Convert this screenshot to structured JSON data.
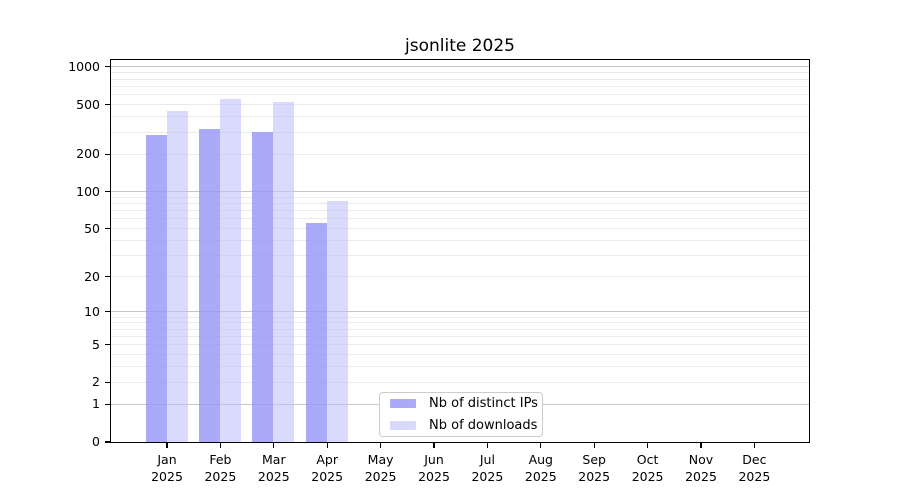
{
  "chart_data": {
    "type": "bar",
    "title": "jsonlite 2025",
    "x_categories": [
      "Jan",
      "Feb",
      "Mar",
      "Apr",
      "May",
      "Jun",
      "Jul",
      "Aug",
      "Sep",
      "Oct",
      "Nov",
      "Dec"
    ],
    "x_year_label": "2025",
    "series": [
      {
        "name": "Nb of distinct IPs",
        "color": "rgba(149,149,247,0.80)",
        "solid_color": "#aaaaf8",
        "values": [
          290,
          320,
          305,
          56,
          null,
          null,
          null,
          null,
          null,
          null,
          null,
          null
        ]
      },
      {
        "name": "Nb of downloads",
        "color": "rgba(193,193,250,0.60)",
        "solid_color": "#d9d9fb",
        "values": [
          445,
          560,
          525,
          84,
          null,
          null,
          null,
          null,
          null,
          null,
          null,
          null
        ]
      }
    ],
    "y_axis": {
      "scale": "log1p",
      "tick_labels": [
        "0",
        "1",
        "2",
        "5",
        "10",
        "20",
        "50",
        "100",
        "200",
        "500",
        "1000"
      ],
      "tick_values": [
        0,
        1,
        2,
        5,
        10,
        20,
        50,
        100,
        200,
        500,
        1000
      ],
      "ylim": [
        0,
        1000
      ]
    },
    "grid": {
      "enabled": true,
      "major_values": [
        1,
        10,
        100,
        1000
      ]
    },
    "legend_position": "bottom-center-inside"
  },
  "colors": {
    "grid_major": "#c6c6c6",
    "grid_minor": "#eaeaea",
    "axis": "#000000",
    "legend_border": "#cccccc",
    "background": "#ffffff"
  }
}
